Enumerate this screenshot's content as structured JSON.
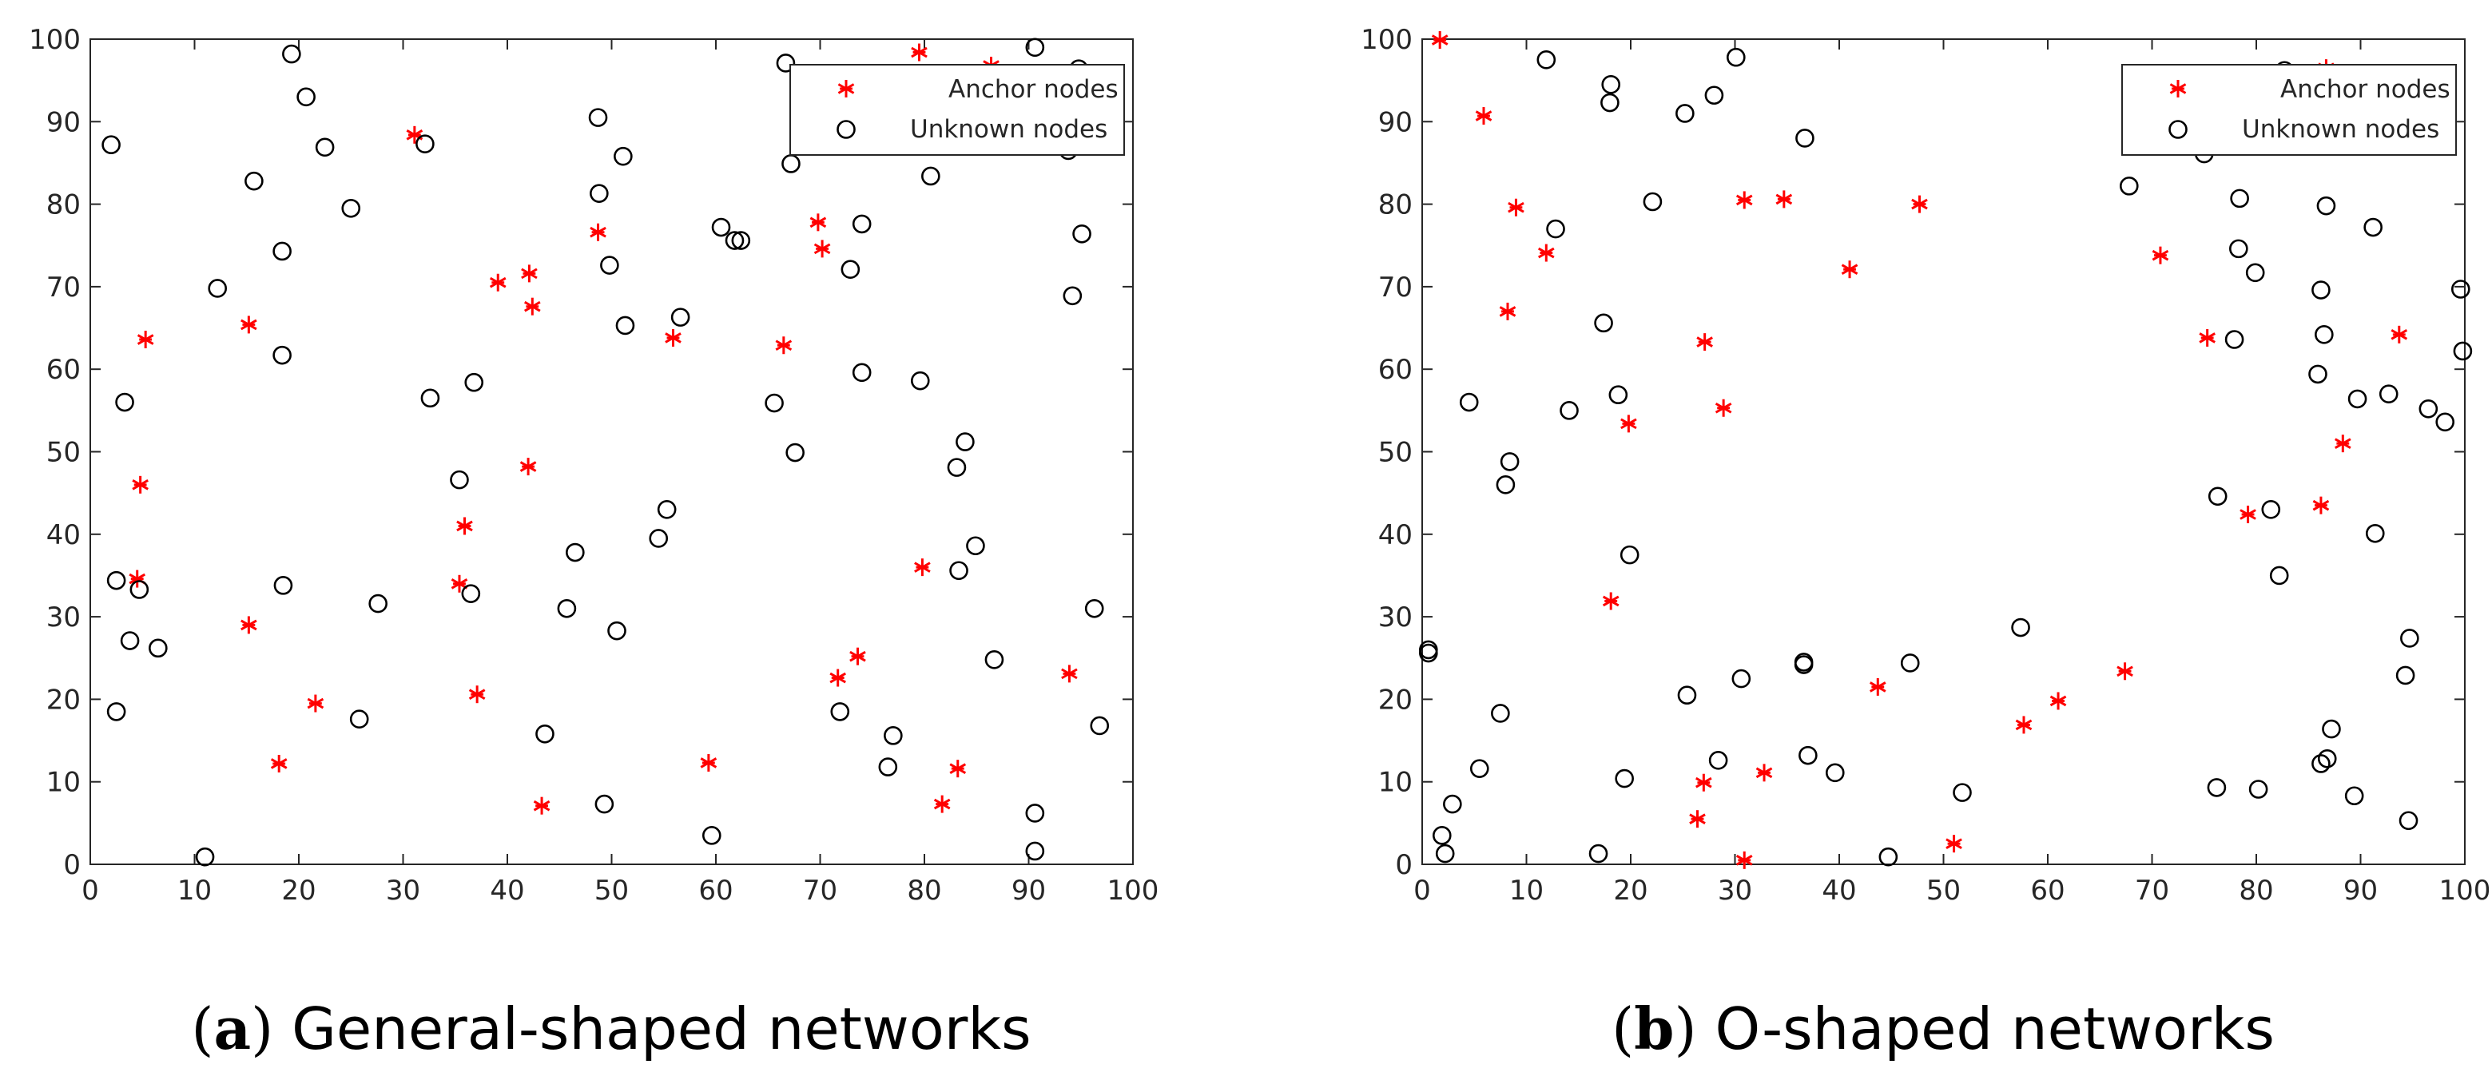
{
  "anchor_color": "#ff0000",
  "unknown_color": "#000000",
  "chart_data": [
    {
      "type": "scatter",
      "caption_letter": "a",
      "caption_text": "General-shaped networks",
      "xlim": [
        0,
        100
      ],
      "ylim": [
        0,
        100
      ],
      "xticks": [
        "0",
        "10",
        "20",
        "30",
        "40",
        "50",
        "60",
        "70",
        "80",
        "90",
        "100"
      ],
      "yticks": [
        "0",
        "10",
        "20",
        "30",
        "40",
        "50",
        "60",
        "70",
        "80",
        "90",
        "100"
      ],
      "legend_position": "top-right",
      "series": [
        {
          "name": "Anchor nodes",
          "marker": "asterisk",
          "points": [
            [
              5.3,
              63.6
            ],
            [
              4.8,
              46.0
            ],
            [
              4.5,
              34.6
            ],
            [
              15.2,
              65.4
            ],
            [
              15.2,
              29.0
            ],
            [
              18.1,
              12.2
            ],
            [
              21.6,
              19.5
            ],
            [
              31.1,
              88.4
            ],
            [
              35.4,
              34.0
            ],
            [
              35.9,
              41.0
            ],
            [
              37.1,
              20.6
            ],
            [
              39.1,
              70.5
            ],
            [
              42.1,
              71.6
            ],
            [
              42.4,
              67.6
            ],
            [
              42.0,
              48.2
            ],
            [
              43.3,
              7.1
            ],
            [
              48.7,
              76.6
            ],
            [
              55.9,
              63.8
            ],
            [
              59.3,
              12.3
            ],
            [
              66.5,
              62.9
            ],
            [
              69.8,
              77.8
            ],
            [
              70.2,
              74.6
            ],
            [
              71.7,
              22.6
            ],
            [
              73.6,
              25.2
            ],
            [
              79.5,
              98.4
            ],
            [
              86.4,
              96.8
            ],
            [
              79.8,
              36.0
            ],
            [
              81.7,
              7.3
            ],
            [
              83.2,
              11.6
            ],
            [
              93.9,
              23.1
            ]
          ]
        },
        {
          "name": "Unknown nodes",
          "marker": "circle",
          "points": [
            [
              2.0,
              87.2
            ],
            [
              3.3,
              56.0
            ],
            [
              2.5,
              34.4
            ],
            [
              3.8,
              27.1
            ],
            [
              4.7,
              33.3
            ],
            [
              6.5,
              26.2
            ],
            [
              2.5,
              18.5
            ],
            [
              11.0,
              0.9
            ],
            [
              12.2,
              69.8
            ],
            [
              15.7,
              82.8
            ],
            [
              18.4,
              74.3
            ],
            [
              18.4,
              61.7
            ],
            [
              18.5,
              33.8
            ],
            [
              19.3,
              98.2
            ],
            [
              20.7,
              93.0
            ],
            [
              22.5,
              86.9
            ],
            [
              25.0,
              79.5
            ],
            [
              25.8,
              17.6
            ],
            [
              27.6,
              31.6
            ],
            [
              32.1,
              87.3
            ],
            [
              32.6,
              56.5
            ],
            [
              35.4,
              46.6
            ],
            [
              36.5,
              32.8
            ],
            [
              36.8,
              58.4
            ],
            [
              43.6,
              15.8
            ],
            [
              45.7,
              31.0
            ],
            [
              46.5,
              37.8
            ],
            [
              48.7,
              90.5
            ],
            [
              48.8,
              81.3
            ],
            [
              49.3,
              7.3
            ],
            [
              49.8,
              72.6
            ],
            [
              50.5,
              28.3
            ],
            [
              51.1,
              85.8
            ],
            [
              51.3,
              65.3
            ],
            [
              54.5,
              39.5
            ],
            [
              55.3,
              43.0
            ],
            [
              56.6,
              66.3
            ],
            [
              59.6,
              3.5
            ],
            [
              60.5,
              77.2
            ],
            [
              61.8,
              75.6
            ],
            [
              62.4,
              75.6
            ],
            [
              65.6,
              55.9
            ],
            [
              66.7,
              97.1
            ],
            [
              67.2,
              84.9
            ],
            [
              67.6,
              49.9
            ],
            [
              72.9,
              72.1
            ],
            [
              74.0,
              59.6
            ],
            [
              74.0,
              77.6
            ],
            [
              71.9,
              18.5
            ],
            [
              76.5,
              11.8
            ],
            [
              77.0,
              15.6
            ],
            [
              79.6,
              58.6
            ],
            [
              80.6,
              83.4
            ],
            [
              83.1,
              48.1
            ],
            [
              83.3,
              35.6
            ],
            [
              83.9,
              51.2
            ],
            [
              84.9,
              38.6
            ],
            [
              86.7,
              24.8
            ],
            [
              90.6,
              99.0
            ],
            [
              90.6,
              6.2
            ],
            [
              90.6,
              1.6
            ],
            [
              93.8,
              86.5
            ],
            [
              94.2,
              68.9
            ],
            [
              94.8,
              96.4
            ],
            [
              95.1,
              76.4
            ],
            [
              96.3,
              31.0
            ],
            [
              96.8,
              16.8
            ]
          ]
        }
      ]
    },
    {
      "type": "scatter",
      "caption_letter": "b",
      "caption_text": "O-shaped networks",
      "xlim": [
        0,
        100
      ],
      "ylim": [
        0,
        100
      ],
      "xticks": [
        "0",
        "10",
        "20",
        "30",
        "40",
        "50",
        "60",
        "70",
        "80",
        "90",
        "100"
      ],
      "yticks": [
        "0",
        "10",
        "20",
        "30",
        "40",
        "50",
        "60",
        "70",
        "80",
        "90",
        "100"
      ],
      "legend_position": "top-right",
      "series": [
        {
          "name": "Anchor nodes",
          "marker": "asterisk",
          "points": [
            [
              1.7,
              99.9
            ],
            [
              5.9,
              90.7
            ],
            [
              9.0,
              79.6
            ],
            [
              11.9,
              74.1
            ],
            [
              8.2,
              67.0
            ],
            [
              18.1,
              31.9
            ],
            [
              19.8,
              53.4
            ],
            [
              26.4,
              5.5
            ],
            [
              27.0,
              9.9
            ],
            [
              27.1,
              63.3
            ],
            [
              28.9,
              55.3
            ],
            [
              30.9,
              80.5
            ],
            [
              32.8,
              11.1
            ],
            [
              30.9,
              0.5
            ],
            [
              34.7,
              80.6
            ],
            [
              41.0,
              72.1
            ],
            [
              47.7,
              80.0
            ],
            [
              43.7,
              21.5
            ],
            [
              51.0,
              2.5
            ],
            [
              57.7,
              16.9
            ],
            [
              61.0,
              19.8
            ],
            [
              67.4,
              23.4
            ],
            [
              70.8,
              73.8
            ],
            [
              75.3,
              63.8
            ],
            [
              79.2,
              42.4
            ],
            [
              86.2,
              43.5
            ],
            [
              86.7,
              96.5
            ],
            [
              88.3,
              51.0
            ],
            [
              93.7,
              64.2
            ]
          ]
        },
        {
          "name": "Unknown nodes",
          "marker": "circle",
          "points": [
            [
              0.6,
              26.0
            ],
            [
              0.6,
              25.6
            ],
            [
              1.9,
              3.5
            ],
            [
              2.2,
              1.3
            ],
            [
              2.9,
              7.3
            ],
            [
              4.5,
              56.0
            ],
            [
              5.5,
              11.6
            ],
            [
              7.5,
              18.3
            ],
            [
              8.0,
              46.0
            ],
            [
              8.4,
              48.8
            ],
            [
              11.9,
              97.5
            ],
            [
              12.8,
              77.0
            ],
            [
              14.1,
              55.0
            ],
            [
              16.9,
              1.3
            ],
            [
              17.4,
              65.6
            ],
            [
              18.0,
              92.3
            ],
            [
              18.1,
              94.5
            ],
            [
              18.8,
              56.9
            ],
            [
              19.4,
              10.4
            ],
            [
              19.9,
              37.5
            ],
            [
              22.1,
              80.3
            ],
            [
              25.2,
              91.0
            ],
            [
              25.4,
              20.5
            ],
            [
              28.0,
              93.2
            ],
            [
              28.4,
              12.6
            ],
            [
              30.1,
              97.8
            ],
            [
              30.6,
              22.5
            ],
            [
              36.7,
              88.0
            ],
            [
              36.6,
              24.5
            ],
            [
              36.6,
              24.2
            ],
            [
              37.0,
              13.2
            ],
            [
              39.6,
              11.1
            ],
            [
              44.7,
              0.9
            ],
            [
              46.8,
              24.4
            ],
            [
              51.8,
              8.7
            ],
            [
              57.4,
              28.7
            ],
            [
              67.8,
              82.2
            ],
            [
              75.0,
              86.1
            ],
            [
              76.2,
              9.3
            ],
            [
              76.3,
              44.6
            ],
            [
              77.9,
              63.6
            ],
            [
              78.3,
              74.6
            ],
            [
              78.4,
              80.7
            ],
            [
              79.9,
              71.7
            ],
            [
              80.2,
              9.1
            ],
            [
              81.4,
              43.0
            ],
            [
              82.2,
              35.0
            ],
            [
              82.7,
              96.2
            ],
            [
              85.9,
              59.4
            ],
            [
              86.2,
              12.2
            ],
            [
              86.2,
              69.6
            ],
            [
              86.5,
              64.2
            ],
            [
              86.7,
              79.8
            ],
            [
              86.8,
              12.8
            ],
            [
              87.2,
              16.4
            ],
            [
              89.4,
              8.3
            ],
            [
              89.7,
              56.4
            ],
            [
              91.2,
              77.2
            ],
            [
              91.4,
              40.1
            ],
            [
              92.7,
              57.0
            ],
            [
              94.3,
              22.9
            ],
            [
              94.6,
              5.3
            ],
            [
              94.7,
              27.4
            ],
            [
              96.5,
              55.2
            ],
            [
              98.1,
              53.6
            ],
            [
              99.6,
              69.7
            ],
            [
              99.8,
              62.2
            ]
          ]
        }
      ]
    }
  ]
}
